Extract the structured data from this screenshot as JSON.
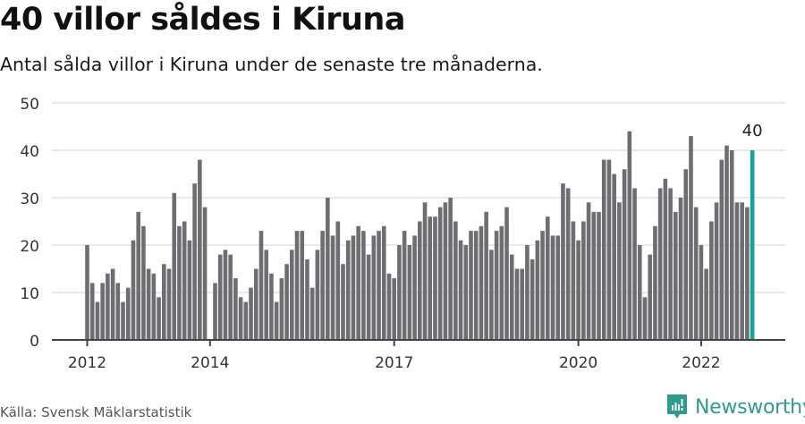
{
  "title": "40 villor såldes i Kiruna",
  "subtitle": "Antal sålda villor i Kiruna under de senaste tre månaderna.",
  "source": "Källa: Svensk Mäklarstatistik",
  "brand": {
    "name": "Newsworthy",
    "icon": "newsworthy-logo-icon",
    "color": "#2f9b8f"
  },
  "colors": {
    "bar": "#6e6d72",
    "highlight": "#12a39a",
    "grid": "#e2e2e2",
    "axis": "#444444"
  },
  "chart_data": {
    "type": "bar",
    "title": "40 villor såldes i Kiruna",
    "subtitle": "Antal sålda villor i Kiruna under de senaste tre månaderna.",
    "xlabel": "",
    "ylabel": "",
    "ylim": [
      0,
      50
    ],
    "yticks": [
      0,
      10,
      20,
      30,
      40,
      50
    ],
    "grid": true,
    "legend": null,
    "x_start": "2012-01",
    "x_end": "2022-11",
    "x_ticks": [
      {
        "label": "2012",
        "index": 0
      },
      {
        "label": "2014",
        "index": 24
      },
      {
        "label": "2017",
        "index": 60
      },
      {
        "label": "2020",
        "index": 96
      },
      {
        "label": "2022",
        "index": 120
      }
    ],
    "annotation": {
      "text": "40",
      "index": 130
    },
    "highlight_last": true,
    "series": [
      {
        "name": "Sålda villor",
        "values": [
          20,
          12,
          8,
          12,
          14,
          15,
          12,
          8,
          11,
          21,
          27,
          24,
          15,
          14,
          9,
          16,
          15,
          31,
          24,
          25,
          21,
          33,
          38,
          28,
          0,
          12,
          18,
          19,
          18,
          13,
          9,
          8,
          11,
          15,
          23,
          19,
          14,
          8,
          13,
          16,
          19,
          23,
          23,
          17,
          11,
          19,
          23,
          30,
          22,
          25,
          16,
          21,
          22,
          24,
          23,
          18,
          22,
          23,
          24,
          14,
          13,
          20,
          23,
          20,
          22,
          25,
          29,
          26,
          26,
          28,
          29,
          30,
          25,
          21,
          20,
          23,
          23,
          24,
          27,
          19,
          23,
          24,
          28,
          18,
          15,
          15,
          20,
          17,
          21,
          23,
          26,
          22,
          22,
          33,
          32,
          25,
          21,
          25,
          29,
          27,
          27,
          38,
          38,
          35,
          29,
          36,
          44,
          32,
          20,
          9,
          18,
          24,
          32,
          34,
          32,
          27,
          30,
          36,
          43,
          28,
          20,
          15,
          25,
          29,
          38,
          41,
          40,
          29,
          29,
          28,
          40
        ]
      }
    ]
  }
}
